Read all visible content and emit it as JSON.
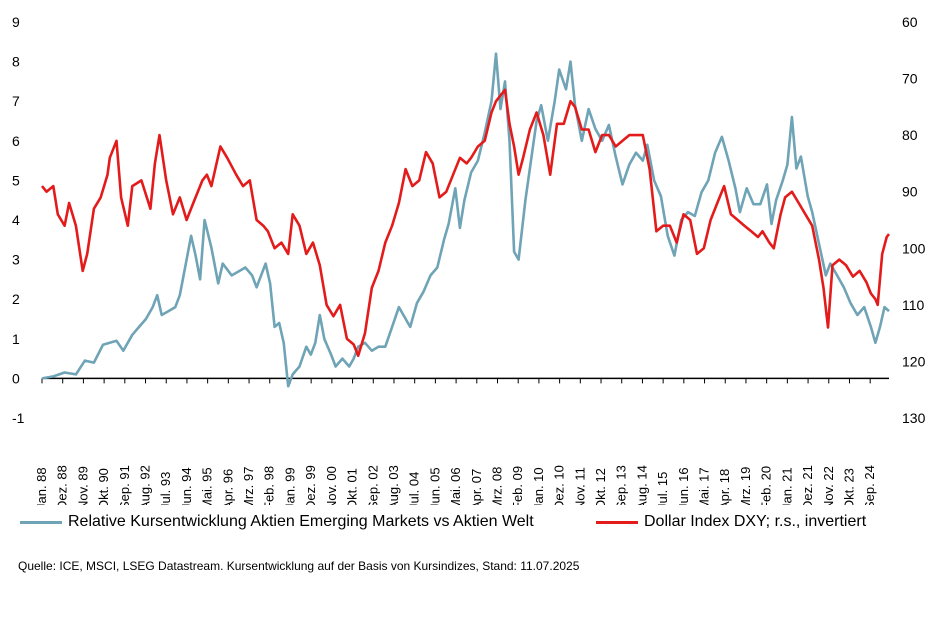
{
  "colors": {
    "em_series": "#6fa3b6",
    "dxy_series": "#e31b1b",
    "axis": "#000000"
  },
  "chart_data": {
    "type": "line",
    "left_axis": {
      "ylim": [
        -1,
        9
      ],
      "ticks": [
        "-1",
        "0",
        "1",
        "2",
        "3",
        "4",
        "5",
        "6",
        "7",
        "8",
        "9"
      ]
    },
    "right_axis": {
      "ylim": [
        130,
        60
      ],
      "inverted": true,
      "ticks": [
        "130",
        "120",
        "110",
        "100",
        "90",
        "80",
        "70",
        "60"
      ]
    },
    "x_labels": [
      "Jan. 88",
      "Dez. 88",
      "Nov. 89",
      "Okt. 90",
      "Sep. 91",
      "Aug. 92",
      "Jul. 93",
      "Jun. 94",
      "Mai. 95",
      "Apr. 96",
      "Mrz. 97",
      "Feb. 98",
      "Jan. 99",
      "Dez. 99",
      "Nov. 00",
      "Okt. 01",
      "Sep. 02",
      "Aug. 03",
      "Jul. 04",
      "Jun. 05",
      "Mai. 06",
      "Apr. 07",
      "Mrz. 08",
      "Feb. 09",
      "Jan. 10",
      "Dez. 10",
      "Nov. 11",
      "Okt. 12",
      "Sep. 13",
      "Aug. 14",
      "Jul. 15",
      "Jun. 16",
      "Mai. 17",
      "Apr. 18",
      "Mrz. 19",
      "Feb. 20",
      "Jan. 21",
      "Dez. 21",
      "Nov. 22",
      "Okt. 23",
      "Sep. 24"
    ],
    "x_range": [
      1988.0,
      2025.5
    ],
    "series": [
      {
        "name": "Relative Kursentwicklung Aktien Emerging Markets vs Aktien Welt",
        "axis": "left",
        "points": [
          [
            1988.0,
            0.0
          ],
          [
            1988.5,
            0.05
          ],
          [
            1989.0,
            0.15
          ],
          [
            1989.5,
            0.1
          ],
          [
            1989.9,
            0.45
          ],
          [
            1990.3,
            0.4
          ],
          [
            1990.7,
            0.85
          ],
          [
            1991.0,
            0.9
          ],
          [
            1991.3,
            0.95
          ],
          [
            1991.6,
            0.7
          ],
          [
            1992.0,
            1.1
          ],
          [
            1992.3,
            1.3
          ],
          [
            1992.6,
            1.5
          ],
          [
            1992.9,
            1.8
          ],
          [
            1993.1,
            2.1
          ],
          [
            1993.3,
            1.6
          ],
          [
            1993.6,
            1.7
          ],
          [
            1993.9,
            1.8
          ],
          [
            1994.1,
            2.1
          ],
          [
            1994.4,
            3.0
          ],
          [
            1994.6,
            3.6
          ],
          [
            1994.8,
            3.1
          ],
          [
            1995.0,
            2.5
          ],
          [
            1995.2,
            4.0
          ],
          [
            1995.5,
            3.3
          ],
          [
            1995.8,
            2.4
          ],
          [
            1996.0,
            2.9
          ],
          [
            1996.4,
            2.6
          ],
          [
            1996.7,
            2.7
          ],
          [
            1997.0,
            2.8
          ],
          [
            1997.3,
            2.6
          ],
          [
            1997.5,
            2.3
          ],
          [
            1997.7,
            2.6
          ],
          [
            1997.9,
            2.9
          ],
          [
            1998.1,
            2.4
          ],
          [
            1998.3,
            1.3
          ],
          [
            1998.5,
            1.4
          ],
          [
            1998.7,
            0.9
          ],
          [
            1998.9,
            -0.2
          ],
          [
            1999.1,
            0.1
          ],
          [
            1999.4,
            0.3
          ],
          [
            1999.7,
            0.8
          ],
          [
            1999.9,
            0.6
          ],
          [
            2000.1,
            0.9
          ],
          [
            2000.3,
            1.6
          ],
          [
            2000.5,
            1.0
          ],
          [
            2000.8,
            0.6
          ],
          [
            2001.0,
            0.3
          ],
          [
            2001.3,
            0.5
          ],
          [
            2001.6,
            0.3
          ],
          [
            2001.8,
            0.5
          ],
          [
            2002.0,
            0.8
          ],
          [
            2002.3,
            0.9
          ],
          [
            2002.6,
            0.7
          ],
          [
            2002.9,
            0.8
          ],
          [
            2003.2,
            0.8
          ],
          [
            2003.5,
            1.3
          ],
          [
            2003.8,
            1.8
          ],
          [
            2004.0,
            1.6
          ],
          [
            2004.3,
            1.3
          ],
          [
            2004.6,
            1.9
          ],
          [
            2004.9,
            2.2
          ],
          [
            2005.2,
            2.6
          ],
          [
            2005.5,
            2.8
          ],
          [
            2005.8,
            3.5
          ],
          [
            2006.0,
            3.9
          ],
          [
            2006.3,
            4.8
          ],
          [
            2006.5,
            3.8
          ],
          [
            2006.7,
            4.5
          ],
          [
            2007.0,
            5.2
          ],
          [
            2007.3,
            5.5
          ],
          [
            2007.6,
            6.2
          ],
          [
            2007.9,
            7.0
          ],
          [
            2008.1,
            8.2
          ],
          [
            2008.3,
            6.8
          ],
          [
            2008.5,
            7.5
          ],
          [
            2008.7,
            6.0
          ],
          [
            2008.9,
            3.2
          ],
          [
            2009.1,
            3.0
          ],
          [
            2009.4,
            4.5
          ],
          [
            2009.7,
            5.7
          ],
          [
            2009.9,
            6.5
          ],
          [
            2010.1,
            6.9
          ],
          [
            2010.4,
            6.0
          ],
          [
            2010.7,
            7.0
          ],
          [
            2010.9,
            7.8
          ],
          [
            2011.2,
            7.3
          ],
          [
            2011.4,
            8.0
          ],
          [
            2011.6,
            6.9
          ],
          [
            2011.9,
            6.0
          ],
          [
            2012.2,
            6.8
          ],
          [
            2012.5,
            6.3
          ],
          [
            2012.8,
            6.0
          ],
          [
            2013.1,
            6.4
          ],
          [
            2013.4,
            5.6
          ],
          [
            2013.7,
            4.9
          ],
          [
            2014.0,
            5.4
          ],
          [
            2014.3,
            5.7
          ],
          [
            2014.6,
            5.5
          ],
          [
            2014.8,
            5.9
          ],
          [
            2015.1,
            5.0
          ],
          [
            2015.4,
            4.6
          ],
          [
            2015.7,
            3.6
          ],
          [
            2016.0,
            3.1
          ],
          [
            2016.3,
            4.0
          ],
          [
            2016.6,
            4.2
          ],
          [
            2016.9,
            4.1
          ],
          [
            2017.2,
            4.7
          ],
          [
            2017.5,
            5.0
          ],
          [
            2017.8,
            5.7
          ],
          [
            2018.1,
            6.1
          ],
          [
            2018.4,
            5.5
          ],
          [
            2018.7,
            4.8
          ],
          [
            2018.9,
            4.2
          ],
          [
            2019.2,
            4.8
          ],
          [
            2019.5,
            4.4
          ],
          [
            2019.8,
            4.4
          ],
          [
            2020.1,
            4.9
          ],
          [
            2020.3,
            3.9
          ],
          [
            2020.5,
            4.5
          ],
          [
            2020.8,
            5.0
          ],
          [
            2021.0,
            5.4
          ],
          [
            2021.2,
            6.6
          ],
          [
            2021.4,
            5.3
          ],
          [
            2021.6,
            5.6
          ],
          [
            2021.9,
            4.6
          ],
          [
            2022.1,
            4.2
          ],
          [
            2022.4,
            3.4
          ],
          [
            2022.7,
            2.6
          ],
          [
            2022.9,
            2.9
          ],
          [
            2023.2,
            2.6
          ],
          [
            2023.5,
            2.3
          ],
          [
            2023.8,
            1.9
          ],
          [
            2024.1,
            1.6
          ],
          [
            2024.4,
            1.8
          ],
          [
            2024.7,
            1.3
          ],
          [
            2024.9,
            0.9
          ],
          [
            2025.1,
            1.3
          ],
          [
            2025.3,
            1.8
          ],
          [
            2025.5,
            1.7
          ]
        ]
      },
      {
        "name": "Dollar Index DXY; r.s., invertiert",
        "axis": "right",
        "points": [
          [
            1988.0,
            89
          ],
          [
            1988.2,
            90
          ],
          [
            1988.5,
            89
          ],
          [
            1988.7,
            94
          ],
          [
            1989.0,
            96
          ],
          [
            1989.2,
            92
          ],
          [
            1989.5,
            96
          ],
          [
            1989.8,
            104
          ],
          [
            1990.0,
            101
          ],
          [
            1990.3,
            93
          ],
          [
            1990.6,
            91
          ],
          [
            1990.9,
            87
          ],
          [
            1991.0,
            84
          ],
          [
            1991.3,
            81
          ],
          [
            1991.5,
            91
          ],
          [
            1991.8,
            96
          ],
          [
            1992.0,
            89
          ],
          [
            1992.4,
            88
          ],
          [
            1992.8,
            93
          ],
          [
            1993.0,
            85
          ],
          [
            1993.2,
            80
          ],
          [
            1993.5,
            88
          ],
          [
            1993.8,
            94
          ],
          [
            1994.1,
            91
          ],
          [
            1994.4,
            95
          ],
          [
            1994.7,
            92
          ],
          [
            1995.1,
            88
          ],
          [
            1995.3,
            87
          ],
          [
            1995.5,
            89
          ],
          [
            1995.9,
            82
          ],
          [
            1996.2,
            84
          ],
          [
            1996.6,
            87
          ],
          [
            1996.9,
            89
          ],
          [
            1997.2,
            88
          ],
          [
            1997.5,
            95
          ],
          [
            1997.8,
            96
          ],
          [
            1998.0,
            97
          ],
          [
            1998.3,
            100
          ],
          [
            1998.6,
            99
          ],
          [
            1998.9,
            101
          ],
          [
            1999.1,
            94
          ],
          [
            1999.4,
            96
          ],
          [
            1999.7,
            101
          ],
          [
            2000.0,
            99
          ],
          [
            2000.3,
            103
          ],
          [
            2000.6,
            110
          ],
          [
            2000.9,
            112
          ],
          [
            2001.2,
            110
          ],
          [
            2001.5,
            116
          ],
          [
            2001.8,
            117
          ],
          [
            2002.0,
            119
          ],
          [
            2002.3,
            115
          ],
          [
            2002.6,
            107
          ],
          [
            2002.9,
            104
          ],
          [
            2003.2,
            99
          ],
          [
            2003.5,
            96
          ],
          [
            2003.8,
            92
          ],
          [
            2004.1,
            86
          ],
          [
            2004.4,
            89
          ],
          [
            2004.7,
            88
          ],
          [
            2005.0,
            83
          ],
          [
            2005.3,
            85
          ],
          [
            2005.6,
            91
          ],
          [
            2005.9,
            90
          ],
          [
            2006.2,
            87
          ],
          [
            2006.5,
            84
          ],
          [
            2006.8,
            85
          ],
          [
            2007.0,
            84
          ],
          [
            2007.3,
            82
          ],
          [
            2007.6,
            81
          ],
          [
            2007.9,
            76
          ],
          [
            2008.1,
            74
          ],
          [
            2008.3,
            73
          ],
          [
            2008.5,
            72
          ],
          [
            2008.7,
            78
          ],
          [
            2008.9,
            82
          ],
          [
            2009.1,
            87
          ],
          [
            2009.3,
            84
          ],
          [
            2009.6,
            79
          ],
          [
            2009.9,
            76
          ],
          [
            2010.2,
            80
          ],
          [
            2010.5,
            87
          ],
          [
            2010.8,
            78
          ],
          [
            2011.1,
            78
          ],
          [
            2011.4,
            74
          ],
          [
            2011.6,
            75
          ],
          [
            2011.9,
            79
          ],
          [
            2012.2,
            79
          ],
          [
            2012.5,
            83
          ],
          [
            2012.8,
            80
          ],
          [
            2013.1,
            80
          ],
          [
            2013.4,
            82
          ],
          [
            2013.7,
            81
          ],
          [
            2014.0,
            80
          ],
          [
            2014.3,
            80
          ],
          [
            2014.6,
            80
          ],
          [
            2014.9,
            86
          ],
          [
            2015.2,
            97
          ],
          [
            2015.5,
            96
          ],
          [
            2015.8,
            96
          ],
          [
            2016.1,
            99
          ],
          [
            2016.4,
            94
          ],
          [
            2016.7,
            95
          ],
          [
            2017.0,
            101
          ],
          [
            2017.3,
            100
          ],
          [
            2017.6,
            95
          ],
          [
            2017.9,
            92
          ],
          [
            2018.2,
            89
          ],
          [
            2018.5,
            94
          ],
          [
            2018.8,
            95
          ],
          [
            2019.1,
            96
          ],
          [
            2019.4,
            97
          ],
          [
            2019.7,
            98
          ],
          [
            2019.9,
            97
          ],
          [
            2020.2,
            99
          ],
          [
            2020.4,
            100
          ],
          [
            2020.7,
            94
          ],
          [
            2020.9,
            91
          ],
          [
            2021.2,
            90
          ],
          [
            2021.5,
            92
          ],
          [
            2021.8,
            94
          ],
          [
            2022.1,
            96
          ],
          [
            2022.4,
            102
          ],
          [
            2022.6,
            107
          ],
          [
            2022.8,
            114
          ],
          [
            2023.0,
            103
          ],
          [
            2023.3,
            102
          ],
          [
            2023.6,
            103
          ],
          [
            2023.9,
            105
          ],
          [
            2024.2,
            104
          ],
          [
            2024.5,
            106
          ],
          [
            2024.7,
            108
          ],
          [
            2024.9,
            109
          ],
          [
            2025.0,
            110
          ],
          [
            2025.2,
            101
          ],
          [
            2025.4,
            98
          ],
          [
            2025.5,
            97.5
          ]
        ]
      }
    ],
    "legend": {
      "em_label": "Relative Kursentwicklung Aktien Emerging Markets vs Aktien Welt",
      "dxy_label": "Dollar Index DXY; r.s., invertiert"
    },
    "source": "Quelle: ICE, MSCI, LSEG Datastream. Kursentwicklung auf der Basis von Kursindizes, Stand: 11.07.2025",
    "grid": false,
    "legend_placement": "bottom"
  }
}
